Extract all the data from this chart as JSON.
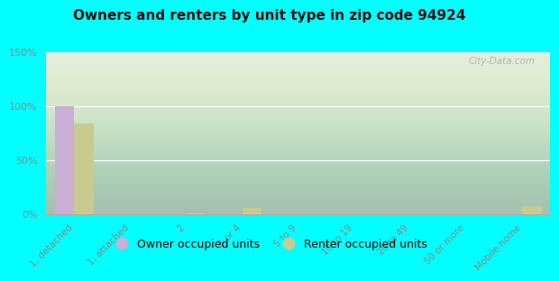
{
  "title": "Owners and renters by unit type in zip code 94924",
  "categories": [
    "1, detached",
    "1, attached",
    "2",
    "3 or 4",
    "5 to 9",
    "10 to 19",
    "20 to 49",
    "50 or more",
    "Mobile home"
  ],
  "owner_values": [
    100,
    0,
    0,
    0,
    0,
    0,
    0,
    0,
    0
  ],
  "renter_values": [
    84,
    0,
    1,
    6,
    0,
    0,
    0,
    0,
    7
  ],
  "owner_color": "#c9aed6",
  "renter_color": "#c8cb8e",
  "background_color": "#00ffff",
  "ylim": [
    0,
    150
  ],
  "yticks": [
    0,
    50,
    100,
    150
  ],
  "ytick_labels": [
    "0%",
    "50%",
    "100%",
    "150%"
  ],
  "watermark": "City-Data.com",
  "legend_owner": "Owner occupied units",
  "legend_renter": "Renter occupied units",
  "bar_width": 0.35,
  "tick_color": "#888888",
  "grid_color": "#ffffff",
  "plot_bg_color_top": "#dde8dd",
  "plot_bg_color_bottom": "#f0f0d8"
}
